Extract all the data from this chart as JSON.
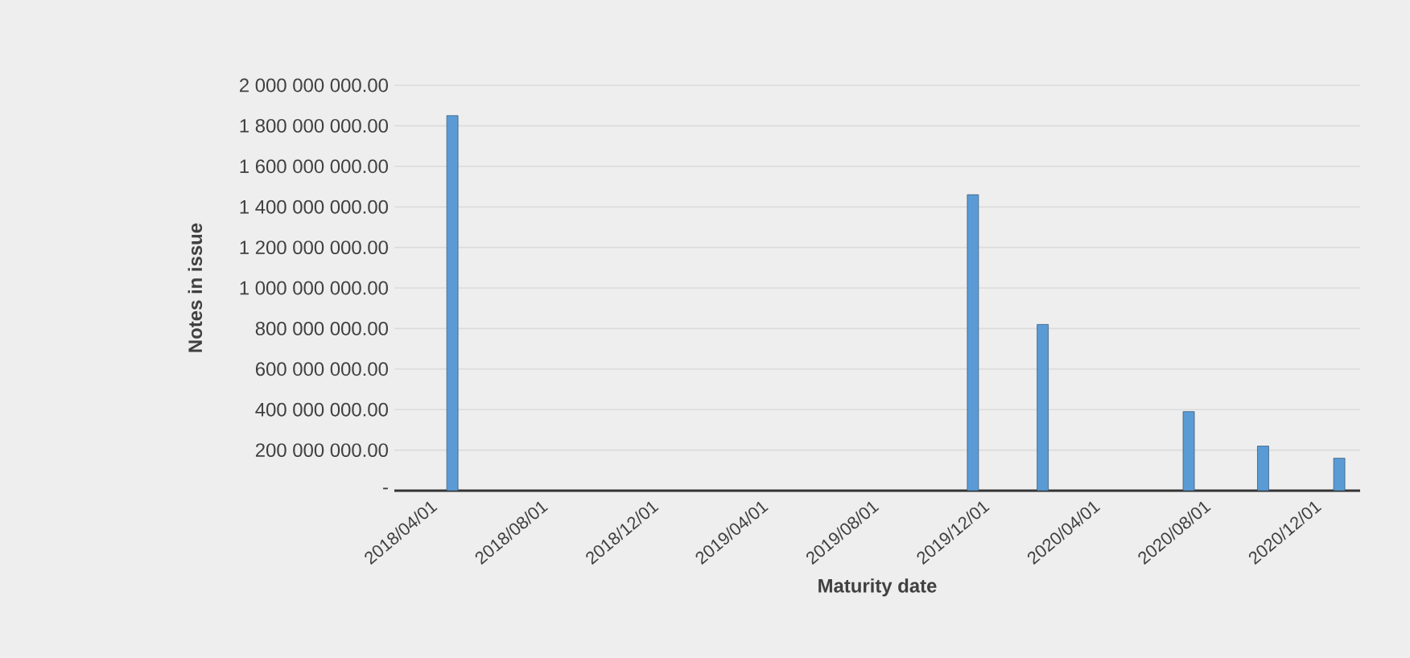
{
  "chart_data": {
    "type": "bar",
    "xlabel": "Maturity date",
    "ylabel": "Notes in issue",
    "x": [
      "2018-04-25",
      "2019-11-20",
      "2020-02-05",
      "2020-07-15",
      "2020-10-05",
      "2020-12-28"
    ],
    "values": [
      1850000000,
      1460000000,
      820000000,
      390000000,
      220000000,
      160000000
    ],
    "color": "#5b9bd5",
    "xlim": [
      "2018-02-20",
      "2021-01-20"
    ],
    "xticks": [
      {
        "value": "2018-04-01",
        "label": "2018/04/01"
      },
      {
        "value": "2018-08-01",
        "label": "2018/08/01"
      },
      {
        "value": "2018-12-01",
        "label": "2018/12/01"
      },
      {
        "value": "2019-04-01",
        "label": "2019/04/01"
      },
      {
        "value": "2019-08-01",
        "label": "2019/08/01"
      },
      {
        "value": "2019-12-01",
        "label": "2019/12/01"
      },
      {
        "value": "2020-04-01",
        "label": "2020/04/01"
      },
      {
        "value": "2020-08-01",
        "label": "2020/08/01"
      },
      {
        "value": "2020-12-01",
        "label": "2020/12/01"
      }
    ],
    "ylim": [
      0,
      2000000000
    ],
    "yticks": [
      {
        "value": 0,
        "label": "-"
      },
      {
        "value": 200000000,
        "label": "200 000 000.00"
      },
      {
        "value": 400000000,
        "label": "400 000 000.00"
      },
      {
        "value": 600000000,
        "label": "600 000 000.00"
      },
      {
        "value": 800000000,
        "label": "800 000 000.00"
      },
      {
        "value": 1000000000,
        "label": "1 000 000 000.00"
      },
      {
        "value": 1200000000,
        "label": "1 200 000 000.00"
      },
      {
        "value": 1400000000,
        "label": "1 400 000 000.00"
      },
      {
        "value": 1600000000,
        "label": "1 600 000 000.00"
      },
      {
        "value": 1800000000,
        "label": "1 800 000 000.00"
      },
      {
        "value": 2000000000,
        "label": "2 000 000 000.00"
      }
    ],
    "grid": "y"
  }
}
